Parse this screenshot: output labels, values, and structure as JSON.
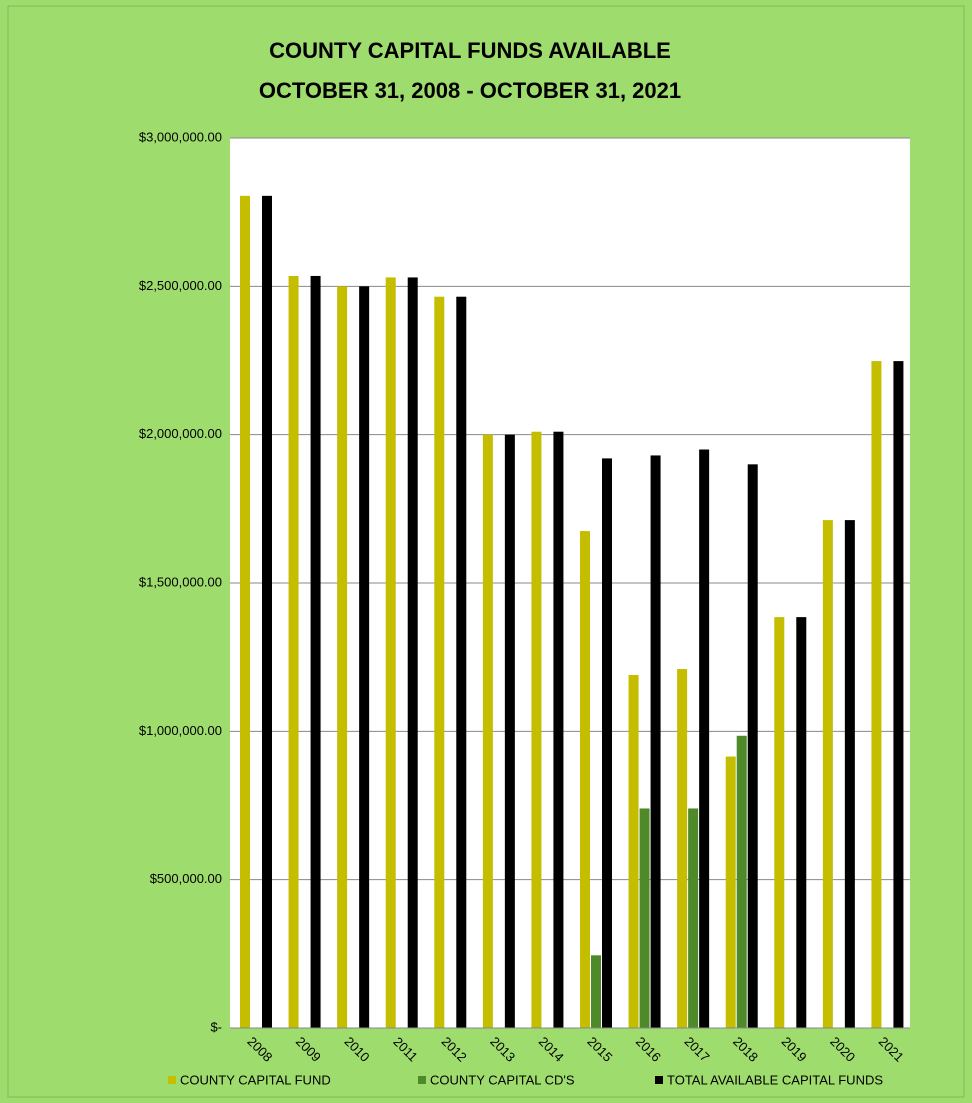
{
  "chart_data": {
    "type": "bar",
    "title": "COUNTY CAPITAL FUNDS AVAILABLE",
    "subtitle": "OCTOBER 31, 2008 - OCTOBER 31, 2021",
    "categories": [
      "2008",
      "2009",
      "2010",
      "2011",
      "2012",
      "2013",
      "2014",
      "2015",
      "2016",
      "2017",
      "2018",
      "2019",
      "2020",
      "2021"
    ],
    "series": [
      {
        "name": "COUNTY CAPITAL FUND",
        "color": "#c4bd00",
        "values": [
          2805000,
          2535000,
          2500000,
          2530000,
          2465000,
          2000000,
          2010000,
          1675000,
          1190000,
          1210000,
          915000,
          1385000,
          1712000,
          2248000
        ]
      },
      {
        "name": "COUNTY CAPITAL CD'S",
        "color": "#4e8a2a",
        "values": [
          null,
          null,
          null,
          null,
          null,
          null,
          null,
          245000,
          740000,
          740000,
          985000,
          null,
          null,
          null
        ]
      },
      {
        "name": "TOTAL AVAILABLE CAPITAL FUNDS",
        "color": "#000000",
        "values": [
          2805000,
          2535000,
          2500000,
          2530000,
          2465000,
          2000000,
          2010000,
          1920000,
          1930000,
          1950000,
          1900000,
          1385000,
          1712000,
          2248000
        ]
      }
    ],
    "ylim": [
      0,
      3000000
    ],
    "yticks": [
      {
        "value": 0,
        "label": "$-"
      },
      {
        "value": 500000,
        "label": "$500,000.00"
      },
      {
        "value": 1000000,
        "label": "$1,000,000.00"
      },
      {
        "value": 1500000,
        "label": "$1,500,000.00"
      },
      {
        "value": 2000000,
        "label": "$2,000,000.00"
      },
      {
        "value": 2500000,
        "label": "$2,500,000.00"
      },
      {
        "value": 3000000,
        "label": "$3,000,000.00"
      }
    ],
    "grid": true,
    "legend": "bottom"
  }
}
